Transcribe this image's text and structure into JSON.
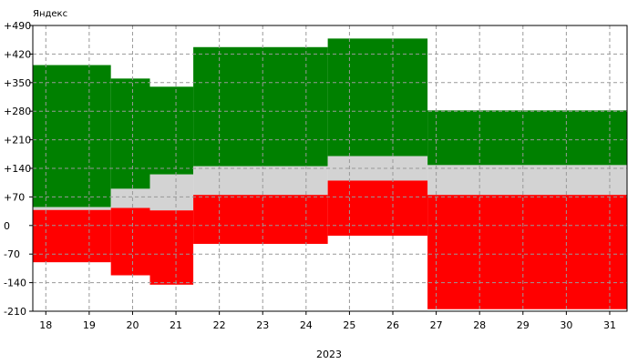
{
  "chart_data": {
    "type": "area",
    "title": "Яндекс",
    "xlabel": "2023",
    "categories": [
      "18",
      "19",
      "20",
      "21",
      "22",
      "23",
      "24",
      "25",
      "26",
      "27",
      "28",
      "29",
      "30",
      "31"
    ],
    "y_tick_labels": [
      "+490",
      "+420",
      "+350",
      "+280",
      "+210",
      "+140",
      "+70",
      "0",
      "-70",
      "-140",
      "-210"
    ],
    "y_ticks": [
      490,
      420,
      350,
      280,
      210,
      140,
      70,
      0,
      -70,
      -140,
      -210
    ],
    "ylim": [
      -210,
      490
    ],
    "grid": true,
    "series": [
      {
        "color": "#008000",
        "values": [
          {
            "x0": 17.7,
            "x1": 19.5,
            "low": 45,
            "high": 393
          },
          {
            "x0": 19.5,
            "x1": 20.4,
            "low": 90,
            "high": 360
          },
          {
            "x0": 20.4,
            "x1": 21.4,
            "low": 125,
            "high": 340
          },
          {
            "x0": 21.4,
            "x1": 24.5,
            "low": 145,
            "high": 437
          },
          {
            "x0": 24.5,
            "x1": 26.8,
            "low": 170,
            "high": 458
          },
          {
            "x0": 26.8,
            "x1": 31.4,
            "low": 148,
            "high": 282
          }
        ]
      },
      {
        "color": "#d3d3d3",
        "values": [
          {
            "x0": 17.7,
            "x1": 19.5,
            "low": 38,
            "high": 45
          },
          {
            "x0": 19.5,
            "x1": 20.4,
            "low": 43,
            "high": 90
          },
          {
            "x0": 20.4,
            "x1": 21.4,
            "low": 37,
            "high": 125
          },
          {
            "x0": 21.4,
            "x1": 24.5,
            "low": 75,
            "high": 145
          },
          {
            "x0": 24.5,
            "x1": 26.8,
            "low": 110,
            "high": 170
          },
          {
            "x0": 26.8,
            "x1": 31.4,
            "low": 75,
            "high": 148
          }
        ]
      },
      {
        "color": "#ff0000",
        "values": [
          {
            "x0": 17.7,
            "x1": 19.5,
            "low": -90,
            "high": 38
          },
          {
            "x0": 19.5,
            "x1": 20.4,
            "low": -122,
            "high": 43
          },
          {
            "x0": 20.4,
            "x1": 21.4,
            "low": -145,
            "high": 37
          },
          {
            "x0": 21.4,
            "x1": 24.5,
            "low": -45,
            "high": 75
          },
          {
            "x0": 24.5,
            "x1": 26.8,
            "low": -25,
            "high": 110
          },
          {
            "x0": 26.8,
            "x1": 31.4,
            "low": -205,
            "high": 75
          }
        ]
      }
    ]
  }
}
